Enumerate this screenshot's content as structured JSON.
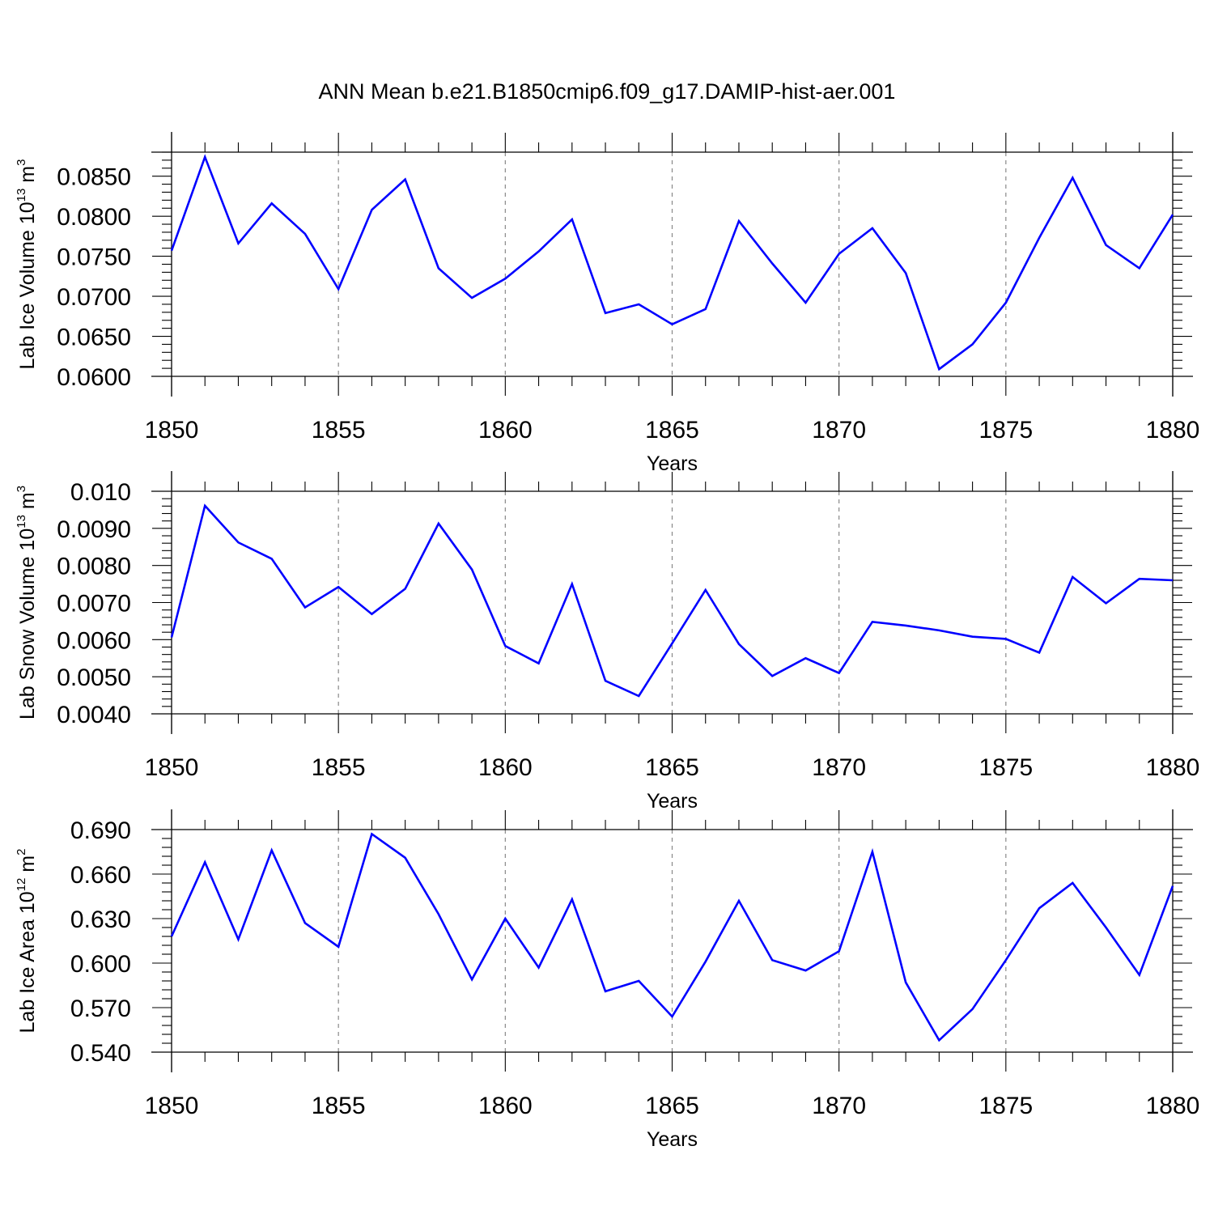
{
  "title": "ANN Mean b.e21.B1850cmip6.f09_g17.DAMIP-hist-aer.001",
  "colors": {
    "line": "#0000ff",
    "axis": "#000000",
    "grid": "#888888"
  },
  "chart_data": [
    {
      "type": "line",
      "ylabel": "Lab Ice Volume 10",
      "ylabel_exp": "13",
      "ylabel_unit": "m",
      "ylabel_unit_exp": "3",
      "xlabel": "Years",
      "xlim": [
        1850,
        1880
      ],
      "ylim": [
        0.06,
        0.088
      ],
      "yticks": [
        0.06,
        0.065,
        0.07,
        0.075,
        0.08,
        0.085
      ],
      "yticklabels": [
        "0.0600",
        "0.0650",
        "0.0700",
        "0.0750",
        "0.0800",
        "0.0850"
      ],
      "yminor_step": 0.001,
      "xticks": [
        1850,
        1855,
        1860,
        1865,
        1870,
        1875,
        1880
      ],
      "xticklabels": [
        "1850",
        "1855",
        "1860",
        "1865",
        "1870",
        "1875",
        "1880"
      ],
      "grid": "vertical dashed at major x ticks",
      "series": [
        {
          "x": [
            1850,
            1851,
            1852,
            1853,
            1854,
            1855,
            1856,
            1857,
            1858,
            1859,
            1860,
            1861,
            1862,
            1863,
            1864,
            1865,
            1866,
            1867,
            1868,
            1869,
            1870,
            1871,
            1872,
            1873,
            1874,
            1875,
            1876,
            1877,
            1878,
            1879,
            1880
          ],
          "values": [
            0.0757,
            0.0874,
            0.0766,
            0.0816,
            0.0778,
            0.0709,
            0.0808,
            0.0846,
            0.0735,
            0.0698,
            0.0722,
            0.0756,
            0.0796,
            0.0679,
            0.069,
            0.0665,
            0.0684,
            0.0794,
            0.0741,
            0.0692,
            0.0753,
            0.0785,
            0.0729,
            0.0609,
            0.064,
            0.0692,
            0.0773,
            0.0848,
            0.0764,
            0.0735,
            0.0802
          ]
        }
      ]
    },
    {
      "type": "line",
      "ylabel": "Lab Snow Volume 10",
      "ylabel_exp": "13",
      "ylabel_unit": "m",
      "ylabel_unit_exp": "3",
      "xlabel": "Years",
      "xlim": [
        1850,
        1880
      ],
      "ylim": [
        0.004,
        0.01
      ],
      "yticks": [
        0.004,
        0.005,
        0.006,
        0.007,
        0.008,
        0.009,
        0.01
      ],
      "yticklabels": [
        "0.0040",
        "0.0050",
        "0.0060",
        "0.0070",
        "0.0080",
        "0.0090",
        "0.010"
      ],
      "yminor_step": 0.0002,
      "xticks": [
        1850,
        1855,
        1860,
        1865,
        1870,
        1875,
        1880
      ],
      "xticklabels": [
        "1850",
        "1855",
        "1860",
        "1865",
        "1870",
        "1875",
        "1880"
      ],
      "grid": "vertical dashed at major x ticks",
      "series": [
        {
          "x": [
            1850,
            1851,
            1852,
            1853,
            1854,
            1855,
            1856,
            1857,
            1858,
            1859,
            1860,
            1861,
            1862,
            1863,
            1864,
            1865,
            1866,
            1867,
            1868,
            1869,
            1870,
            1871,
            1872,
            1873,
            1874,
            1875,
            1876,
            1877,
            1878,
            1879,
            1880
          ],
          "values": [
            0.00606,
            0.00961,
            0.00862,
            0.00818,
            0.00687,
            0.00742,
            0.00669,
            0.00737,
            0.00913,
            0.00789,
            0.00583,
            0.00536,
            0.0075,
            0.00489,
            0.00448,
            0.0059,
            0.00734,
            0.00588,
            0.00502,
            0.0055,
            0.0051,
            0.00648,
            0.00638,
            0.00625,
            0.00608,
            0.00602,
            0.00565,
            0.00769,
            0.00698,
            0.00764,
            0.0076
          ]
        }
      ]
    },
    {
      "type": "line",
      "ylabel": "Lab Ice Area 10",
      "ylabel_exp": "12",
      "ylabel_unit": "m",
      "ylabel_unit_exp": "2",
      "xlabel": "Years",
      "xlim": [
        1850,
        1880
      ],
      "ylim": [
        0.54,
        0.69
      ],
      "yticks": [
        0.54,
        0.57,
        0.6,
        0.63,
        0.66,
        0.69
      ],
      "yticklabels": [
        "0.540",
        "0.570",
        "0.600",
        "0.630",
        "0.660",
        "0.690"
      ],
      "yminor_step": 0.006,
      "xticks": [
        1850,
        1855,
        1860,
        1865,
        1870,
        1875,
        1880
      ],
      "xticklabels": [
        "1850",
        "1855",
        "1860",
        "1865",
        "1870",
        "1875",
        "1880"
      ],
      "grid": "vertical dashed at major x ticks",
      "series": [
        {
          "x": [
            1850,
            1851,
            1852,
            1853,
            1854,
            1855,
            1856,
            1857,
            1858,
            1859,
            1860,
            1861,
            1862,
            1863,
            1864,
            1865,
            1866,
            1867,
            1868,
            1869,
            1870,
            1871,
            1872,
            1873,
            1874,
            1875,
            1876,
            1877,
            1878,
            1879,
            1880
          ],
          "values": [
            0.618,
            0.668,
            0.616,
            0.676,
            0.627,
            0.611,
            0.687,
            0.671,
            0.633,
            0.589,
            0.63,
            0.597,
            0.643,
            0.581,
            0.588,
            0.564,
            0.601,
            0.642,
            0.602,
            0.595,
            0.608,
            0.675,
            0.587,
            0.548,
            0.569,
            0.602,
            0.637,
            0.654,
            0.624,
            0.592,
            0.652
          ]
        }
      ]
    }
  ]
}
